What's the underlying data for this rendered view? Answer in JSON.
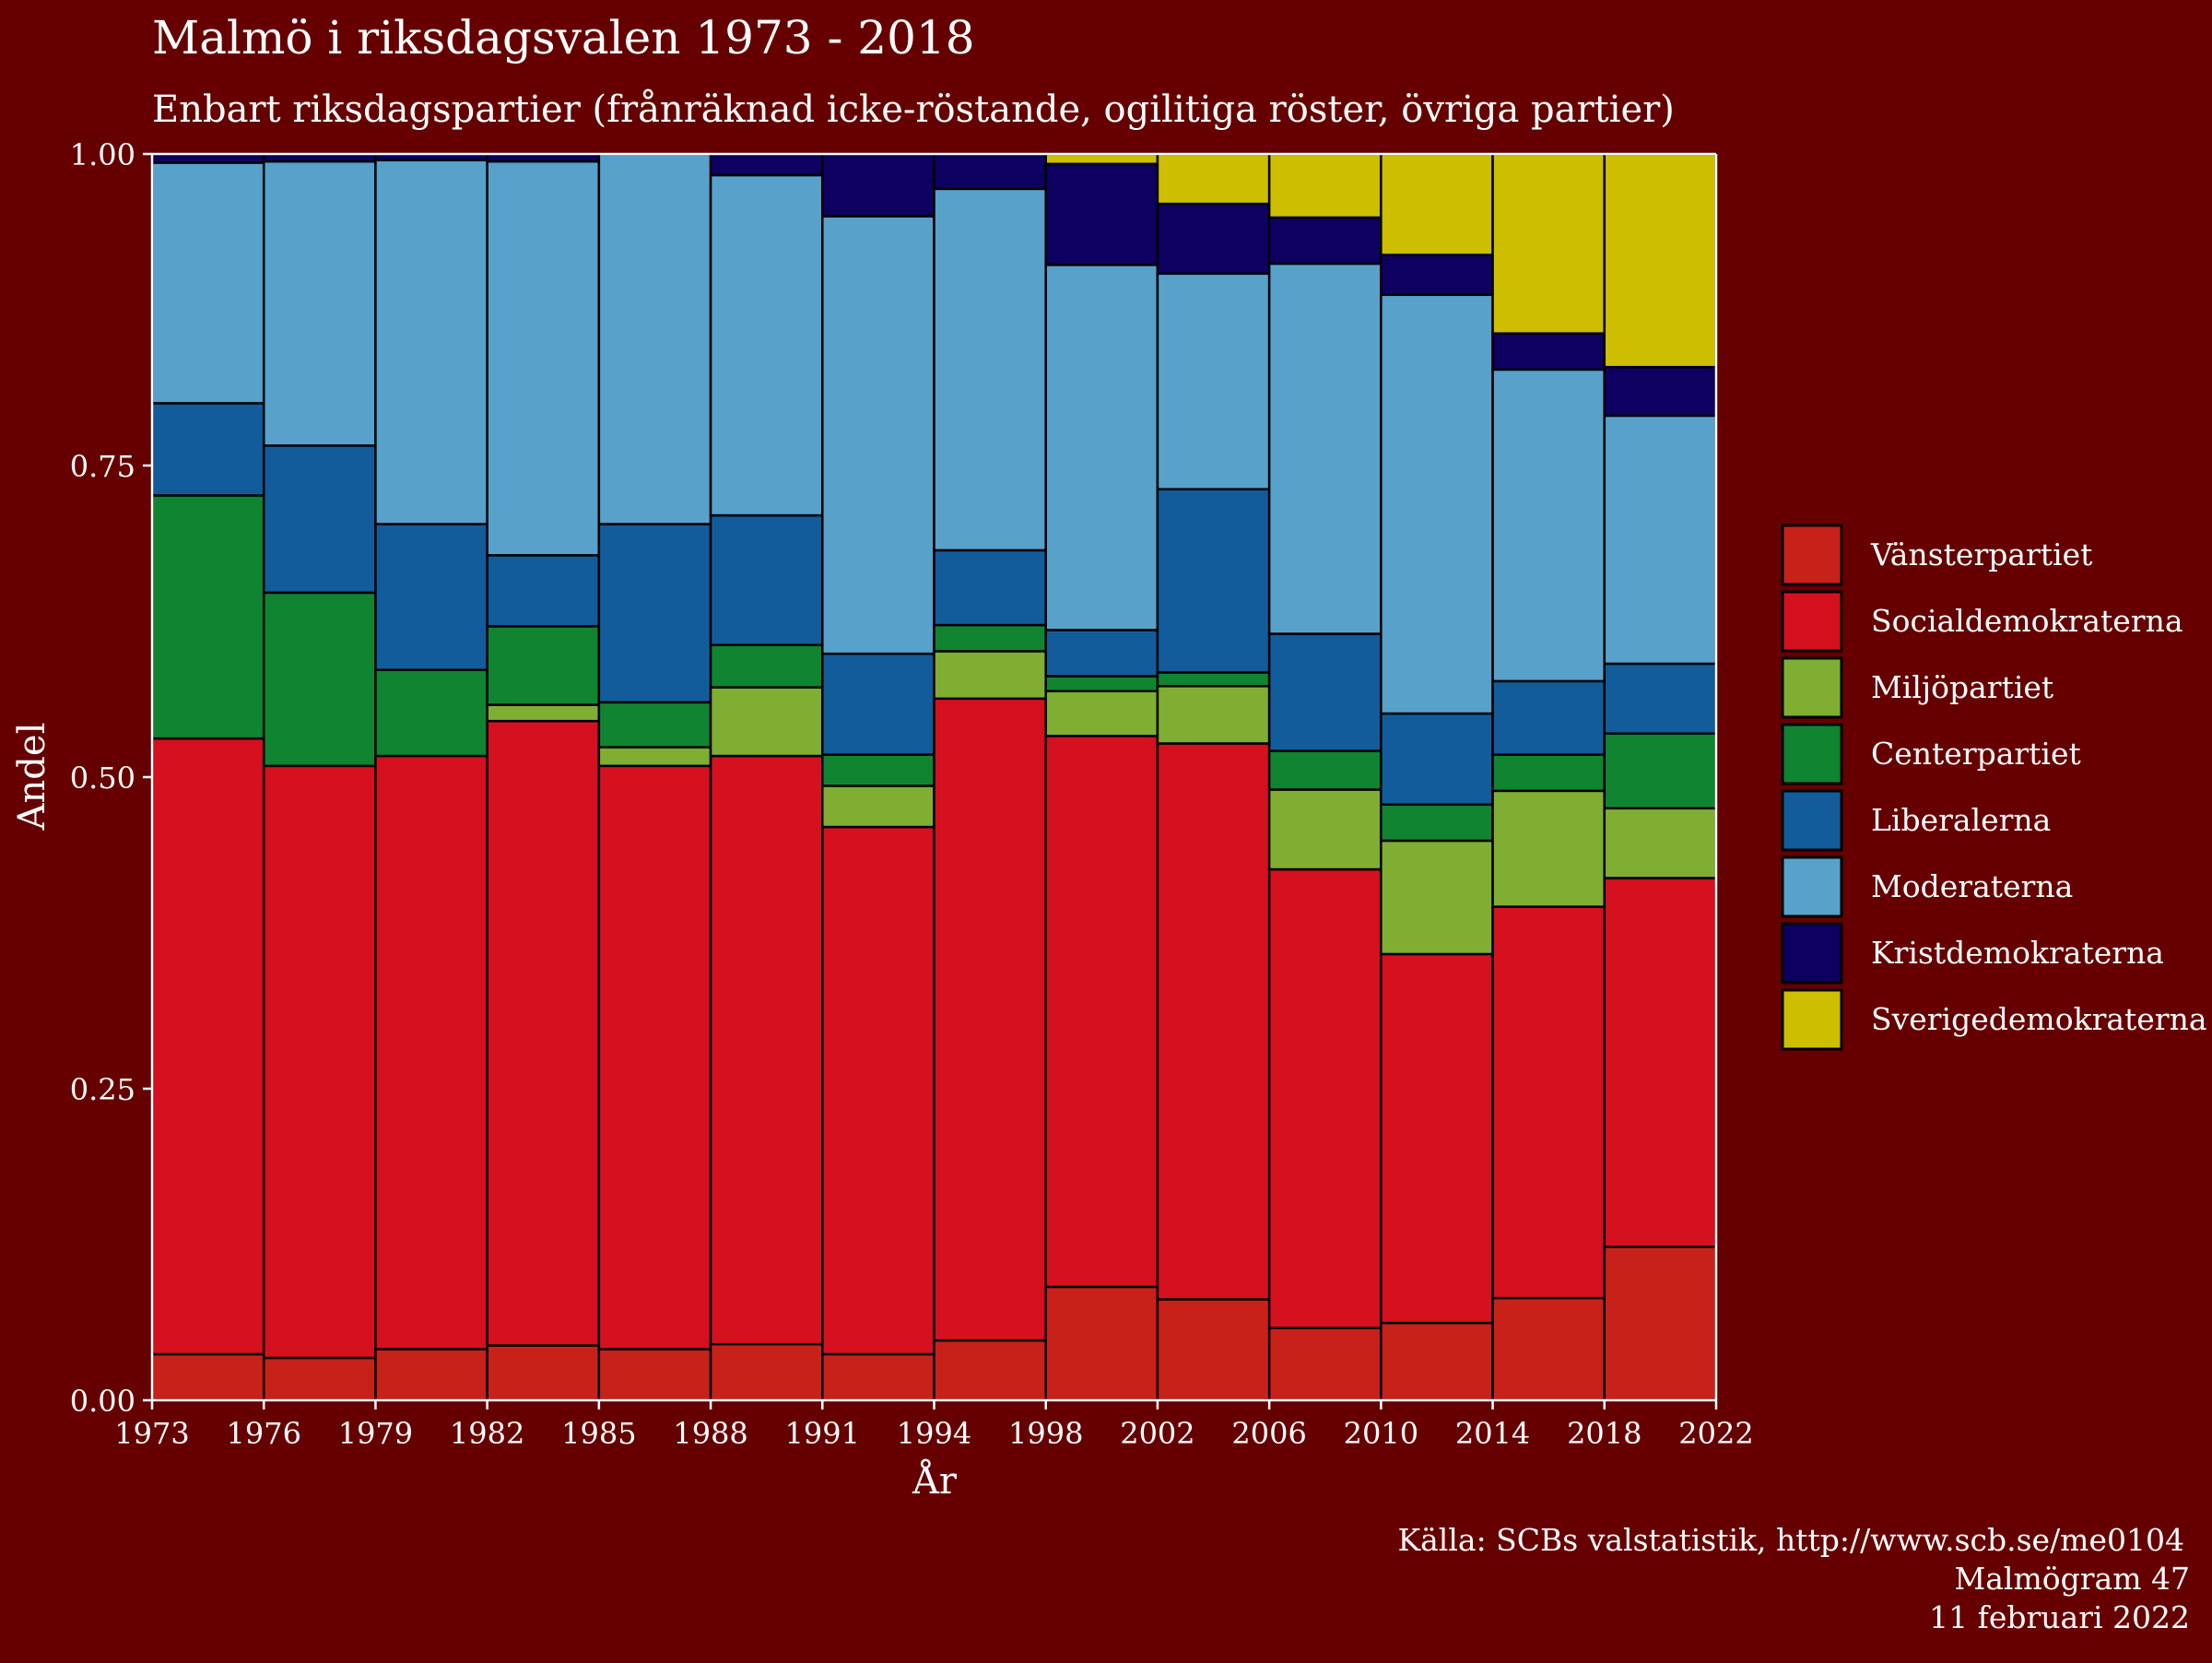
{
  "chart_data": {
    "type": "bar",
    "title": "Malmö i riksdagsvalen 1973 - 2018",
    "subtitle": "Enbart riksdagspartier (frånräknad icke-röstande, ogilitiga röster, övriga partier)",
    "xlabel": "År",
    "ylabel": "Andel",
    "ylim": [
      0,
      1
    ],
    "yticks": [
      "0.00",
      "0.25",
      "0.50",
      "0.75",
      "1.00"
    ],
    "ytick_values": [
      0,
      0.25,
      0.5,
      0.75,
      1.0
    ],
    "xticks": [
      "1973",
      "1976",
      "1979",
      "1982",
      "1985",
      "1988",
      "1991",
      "1994",
      "1998",
      "2002",
      "2006",
      "2010",
      "2014",
      "2018",
      "2022"
    ],
    "x": [
      1973,
      1976,
      1979,
      1982,
      1985,
      1988,
      1991,
      1994,
      1998,
      2002,
      2006,
      2010,
      2014,
      2018
    ],
    "bar_end": [
      1976,
      1979,
      1982,
      1985,
      1988,
      1991,
      1994,
      1998,
      2002,
      2006,
      2010,
      2014,
      2018,
      2022
    ],
    "grid": true,
    "legend_position": "right",
    "series": [
      {
        "name": "Vänsterpartiet",
        "color": "#C8211A",
        "values": [
          0.037,
          0.034,
          0.041,
          0.044,
          0.041,
          0.045,
          0.037,
          0.048,
          0.091,
          0.081,
          0.058,
          0.062,
          0.082,
          0.123
        ]
      },
      {
        "name": "Socialdemokraterna",
        "color": "#D5101F",
        "values": [
          0.494,
          0.475,
          0.476,
          0.501,
          0.468,
          0.472,
          0.423,
          0.515,
          0.442,
          0.446,
          0.368,
          0.296,
          0.314,
          0.296
        ]
      },
      {
        "name": "Miljöpartiet",
        "color": "#7FAE33",
        "values": [
          0,
          0,
          0,
          0.013,
          0.015,
          0.055,
          0.033,
          0.038,
          0.036,
          0.046,
          0.064,
          0.091,
          0.093,
          0.056
        ]
      },
      {
        "name": "Centerpartiet",
        "color": "#108431",
        "values": [
          0.195,
          0.139,
          0.069,
          0.063,
          0.036,
          0.034,
          0.025,
          0.021,
          0.012,
          0.011,
          0.031,
          0.029,
          0.029,
          0.06
        ]
      },
      {
        "name": "Liberalerna",
        "color": "#125C9C",
        "values": [
          0.074,
          0.118,
          0.117,
          0.057,
          0.143,
          0.104,
          0.081,
          0.06,
          0.037,
          0.147,
          0.094,
          0.073,
          0.059,
          0.056
        ]
      },
      {
        "name": "Moderaterna",
        "color": "#58A1CB",
        "values": [
          0.193,
          0.228,
          0.292,
          0.316,
          0.297,
          0.273,
          0.351,
          0.29,
          0.293,
          0.173,
          0.297,
          0.336,
          0.25,
          0.199
        ]
      },
      {
        "name": "Kristdemokraterna",
        "color": "#0E0060",
        "values": [
          0.007,
          0.006,
          0.005,
          0.006,
          0,
          0.017,
          0.05,
          0.028,
          0.081,
          0.056,
          0.037,
          0.032,
          0.029,
          0.039
        ]
      },
      {
        "name": "Sverigedemokraterna",
        "color": "#CDBE00",
        "values": [
          0,
          0,
          0,
          0,
          0,
          0,
          0,
          0,
          0.008,
          0.04,
          0.051,
          0.081,
          0.144,
          0.171
        ]
      }
    ]
  },
  "caption": {
    "line1": "Källa: SCBs valstatistik, http://www.scb.se/me0104",
    "line2": "Malmögram 47",
    "line3": "11 februari 2022"
  }
}
